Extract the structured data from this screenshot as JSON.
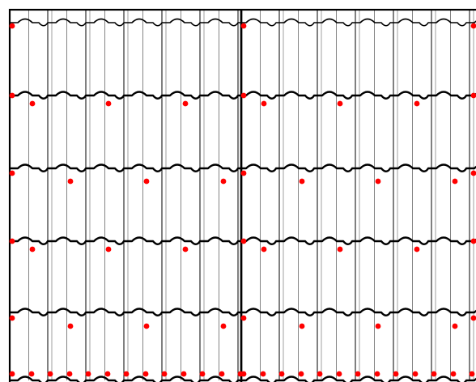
{
  "diagram": {
    "subject": "roof-tile-layout-with-fixing-points",
    "panels": [
      {
        "id": "left-section"
      },
      {
        "id": "right-section"
      }
    ],
    "tile_courses": 6,
    "fixing_point_rows": [
      {
        "row": 1,
        "pattern": "edges-only"
      },
      {
        "row": 2,
        "pattern": "staggered-a"
      },
      {
        "row": 3,
        "pattern": "staggered-b"
      },
      {
        "row": 4,
        "pattern": "staggered-a"
      },
      {
        "row": 5,
        "pattern": "staggered-b"
      },
      {
        "row": 6,
        "pattern": "every-column"
      }
    ],
    "colors": {
      "background": "#ffffff",
      "outline": "#000000",
      "rib_line": "#777777",
      "fixing_point": "#ff0000"
    }
  }
}
